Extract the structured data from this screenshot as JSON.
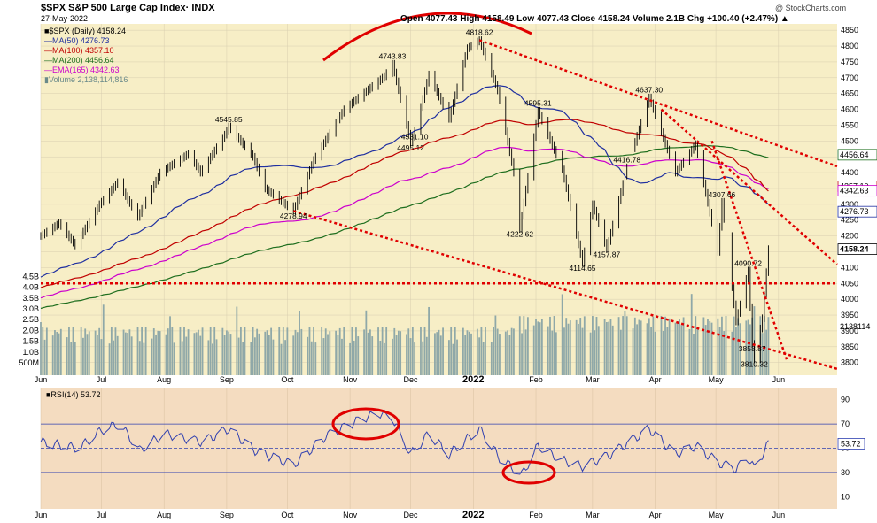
{
  "header": {
    "title": "$SPX S&P 500 Large Cap Index· INDX",
    "date": "27-May-2022",
    "ohlc": "Open 4077.43  High 4158.49  Low 4077.43  Close 4158.24  Volume 2.1B  Chg +100.40 (+2.47%) ▲",
    "credit": "@ StockCharts.com"
  },
  "legend": [
    {
      "label": "■$SPX (Daily) 4158.24",
      "color": "#000000"
    },
    {
      "label": "—MA(50) 4276.73",
      "color": "#1f2fa0"
    },
    {
      "label": "—MA(100) 4357.10",
      "color": "#c00000"
    },
    {
      "label": "—MA(200) 4456.64",
      "color": "#1e6e1e"
    },
    {
      "label": "—EMA(165) 4342.63",
      "color": "#cc00cc"
    },
    {
      "label": "▮Volume 2,138,114,816",
      "color": "#7a9a9a"
    }
  ],
  "rsi_label": "■RSI(14) 53.72",
  "colors": {
    "price_bg": "#f7eec6",
    "rsi_bg": "#f4dcc0",
    "volume": "#8fa8a8",
    "price": "#000000",
    "ma50": "#1f2fa0",
    "ma100": "#c00000",
    "ma200": "#1e6e1e",
    "ema165": "#cc00cc",
    "trend": "#e00000",
    "rsi_line": "#3040b0"
  },
  "chart_data": [
    {
      "type": "line",
      "name": "price",
      "title": "$SPX S&P 500 Large Cap Index",
      "x_axis_ticks": [
        "Jun",
        "Jul",
        "Aug",
        "Sep",
        "Oct",
        "Nov",
        "Dec",
        "2022",
        "Feb",
        "Mar",
        "Apr",
        "May",
        "Jun"
      ],
      "x_range": [
        "2021-06-01",
        "2022-06-30"
      ],
      "y_range": [
        3760,
        4870
      ],
      "y_ticks": [
        3800,
        3850,
        3900,
        3950,
        4000,
        4050,
        4100,
        4150,
        4200,
        4250,
        4300,
        4350,
        4400,
        4450,
        4500,
        4550,
        4600,
        4650,
        4700,
        4750,
        4800,
        4850
      ],
      "volume_ticks": [
        "500M",
        "1.0B",
        "1.5B",
        "2.0B",
        "2.5B",
        "3.0B",
        "3.5B",
        "4.0B",
        "4.5B"
      ],
      "price_points": [
        [
          "2021-06-01",
          4200
        ],
        [
          "2021-06-10",
          4240
        ],
        [
          "2021-06-18",
          4170
        ],
        [
          "2021-06-30",
          4300
        ],
        [
          "2021-07-09",
          4370
        ],
        [
          "2021-07-19",
          4260
        ],
        [
          "2021-07-30",
          4400
        ],
        [
          "2021-08-13",
          4460
        ],
        [
          "2021-08-19",
          4400
        ],
        [
          "2021-08-31",
          4520
        ],
        [
          "2021-09-02",
          4545.85
        ],
        [
          "2021-09-14",
          4450
        ],
        [
          "2021-09-20",
          4350
        ],
        [
          "2021-10-04",
          4278.94
        ],
        [
          "2021-10-14",
          4440
        ],
        [
          "2021-10-29",
          4600
        ],
        [
          "2021-11-18",
          4705
        ],
        [
          "2021-11-22",
          4743.83
        ],
        [
          "2021-12-01",
          4495.12
        ],
        [
          "2021-12-03",
          4531.1
        ],
        [
          "2021-12-10",
          4710
        ],
        [
          "2021-12-20",
          4570
        ],
        [
          "2021-12-29",
          4793
        ],
        [
          "2022-01-04",
          4818.62
        ],
        [
          "2022-01-13",
          4660
        ],
        [
          "2022-01-21",
          4400
        ],
        [
          "2022-01-24",
          4222.62
        ],
        [
          "2022-02-02",
          4595.31
        ],
        [
          "2022-02-14",
          4410
        ],
        [
          "2022-02-24",
          4114.65
        ],
        [
          "2022-03-01",
          4300
        ],
        [
          "2022-03-08",
          4157.87
        ],
        [
          "2022-03-18",
          4416.78
        ],
        [
          "2022-03-29",
          4637.3
        ],
        [
          "2022-04-11",
          4400
        ],
        [
          "2022-04-21",
          4490
        ],
        [
          "2022-05-02",
          4150
        ],
        [
          "2022-05-04",
          4307.66
        ],
        [
          "2022-05-11",
          3930
        ],
        [
          "2022-05-17",
          4090.72
        ],
        [
          "2022-05-19",
          3858.87
        ],
        [
          "2022-05-20",
          3810.32
        ],
        [
          "2022-05-24",
          3940
        ],
        [
          "2022-05-27",
          4158.24
        ]
      ],
      "annotations": [
        "4545.85",
        "4278.94",
        "4743.83",
        "4495.12",
        "4531.10",
        "4818.62",
        "4595.31",
        "4222.62",
        "4416.78",
        "4114.65",
        "4157.87",
        "4637.30",
        "4307.66",
        "4090.72",
        "3858.87",
        "3810.32"
      ],
      "right_labels": [
        "4456.64",
        "4357.10",
        "4342.63",
        "4276.73",
        "4158.24",
        "2138114"
      ],
      "support_level": 4050,
      "trendlines": [
        {
          "from": [
            "2022-01-04",
            4818.62
          ],
          "to": [
            "2022-06-30",
            4420
          ]
        },
        {
          "from": [
            "2021-10-04",
            4278.94
          ],
          "to": [
            "2022-06-30",
            3780
          ]
        },
        {
          "from": [
            "2022-04-04",
            4600
          ],
          "to": [
            "2022-06-30",
            4110
          ]
        },
        {
          "from": [
            "2022-04-29",
            4500
          ],
          "to": [
            "2022-06-05",
            3810
          ]
        }
      ]
    },
    {
      "type": "line",
      "name": "rsi",
      "y_range": [
        0,
        100
      ],
      "y_ticks": [
        10,
        30,
        50,
        70,
        90
      ],
      "levels": [
        70,
        50,
        30
      ],
      "last": 53.72,
      "rsi_points": [
        [
          "2021-06-01",
          55
        ],
        [
          "2021-06-20",
          50
        ],
        [
          "2021-07-01",
          65
        ],
        [
          "2021-07-10",
          70
        ],
        [
          "2021-07-20",
          48
        ],
        [
          "2021-08-01",
          62
        ],
        [
          "2021-08-20",
          55
        ],
        [
          "2021-09-02",
          66
        ],
        [
          "2021-09-15",
          48
        ],
        [
          "2021-10-04",
          36
        ],
        [
          "2021-10-20",
          60
        ],
        [
          "2021-11-05",
          73
        ],
        [
          "2021-11-15",
          79
        ],
        [
          "2021-11-22",
          75
        ],
        [
          "2021-12-01",
          45
        ],
        [
          "2021-12-10",
          62
        ],
        [
          "2021-12-20",
          45
        ],
        [
          "2022-01-04",
          66
        ],
        [
          "2022-01-14",
          42
        ],
        [
          "2022-01-25",
          28
        ],
        [
          "2022-02-02",
          52
        ],
        [
          "2022-02-14",
          40
        ],
        [
          "2022-02-24",
          35
        ],
        [
          "2022-03-10",
          45
        ],
        [
          "2022-03-29",
          66
        ],
        [
          "2022-04-11",
          45
        ],
        [
          "2022-04-21",
          52
        ],
        [
          "2022-05-02",
          38
        ],
        [
          "2022-05-11",
          33
        ],
        [
          "2022-05-17",
          42
        ],
        [
          "2022-05-20",
          33
        ],
        [
          "2022-05-27",
          53.72
        ]
      ]
    }
  ]
}
